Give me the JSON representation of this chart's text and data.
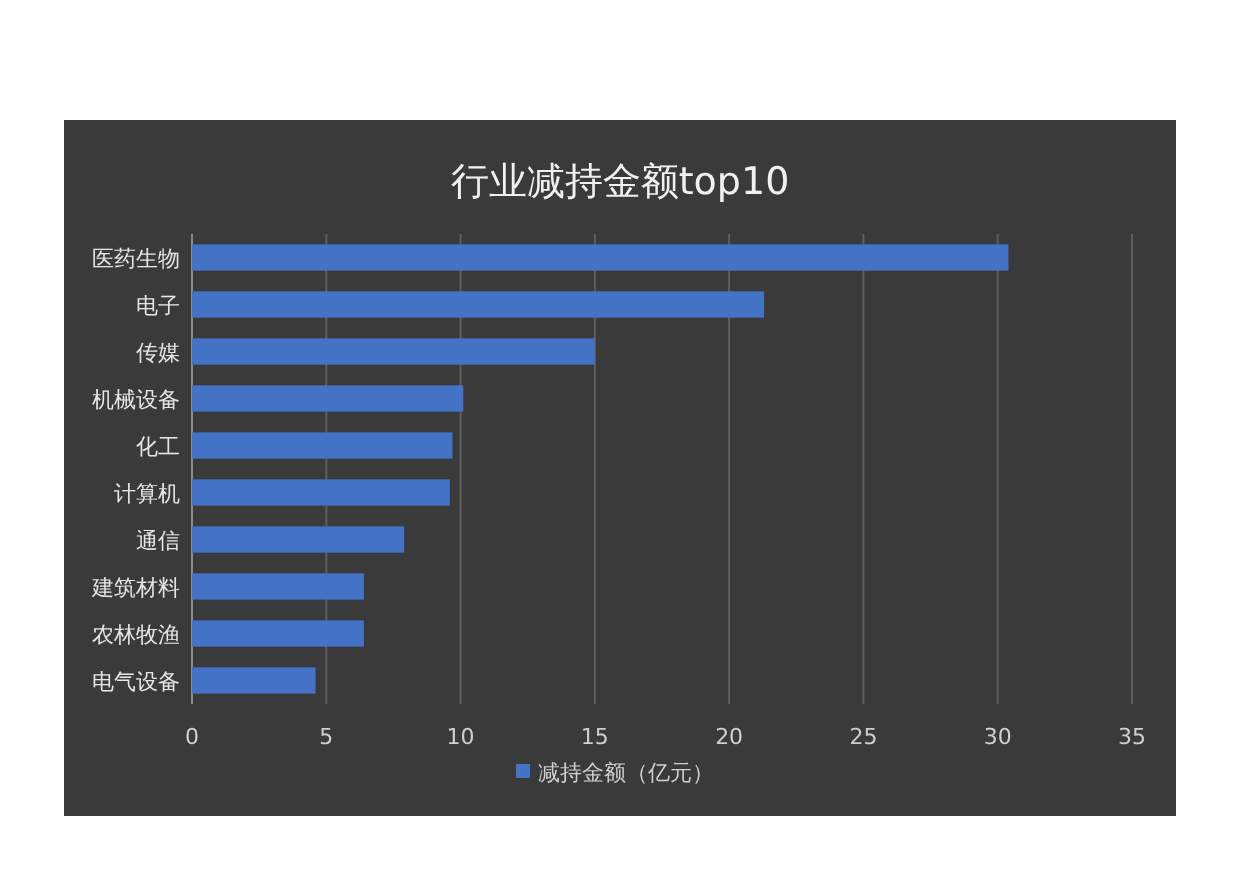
{
  "chart_data": {
    "type": "bar",
    "orientation": "horizontal",
    "title": "行业减持金额top10",
    "categories": [
      "医药生物",
      "电子",
      "传媒",
      "机械设备",
      "化工",
      "计算机",
      "通信",
      "建筑材料",
      "农林牧渔",
      "电气设备"
    ],
    "series": [
      {
        "name": "减持金额（亿元）",
        "color": "#4472c4",
        "values": [
          30.4,
          21.3,
          15.0,
          10.1,
          9.7,
          9.6,
          7.9,
          6.4,
          6.4,
          4.6
        ]
      }
    ],
    "xlim": [
      0,
      35
    ],
    "xticks": [
      0,
      5,
      10,
      15,
      20,
      25,
      30,
      35
    ],
    "grid": "x",
    "legend": "bottom"
  }
}
